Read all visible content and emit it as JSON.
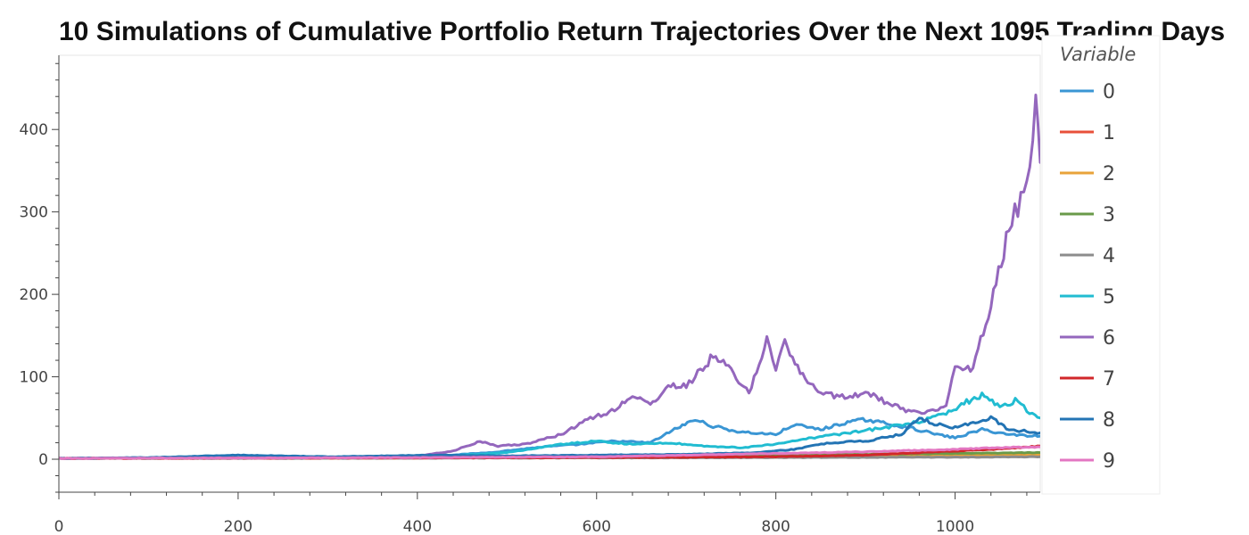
{
  "chart_data": {
    "type": "line",
    "title": "10 Simulations of Cumulative Portfolio Return Trajectories Over the Next 1095 Trading Days",
    "xlabel": "",
    "ylabel": "",
    "xlim": [
      0,
      1095
    ],
    "ylim": [
      -40,
      490
    ],
    "x_ticks": [
      0,
      200,
      400,
      600,
      800,
      1000
    ],
    "y_ticks": [
      0,
      100,
      200,
      300,
      400
    ],
    "legend": {
      "title": "Variable",
      "placement": "right"
    },
    "grid": false,
    "series": [
      {
        "name": "0",
        "color": "#3a96d4",
        "points": [
          [
            0,
            1
          ],
          [
            150,
            1.5
          ],
          [
            300,
            2
          ],
          [
            420,
            4
          ],
          [
            480,
            8
          ],
          [
            540,
            15
          ],
          [
            580,
            18
          ],
          [
            620,
            22
          ],
          [
            660,
            20
          ],
          [
            690,
            38
          ],
          [
            710,
            48
          ],
          [
            730,
            40
          ],
          [
            760,
            33
          ],
          [
            800,
            30
          ],
          [
            820,
            42
          ],
          [
            850,
            36
          ],
          [
            880,
            45
          ],
          [
            900,
            48
          ],
          [
            920,
            44
          ],
          [
            950,
            38
          ],
          [
            980,
            30
          ],
          [
            1000,
            26
          ],
          [
            1030,
            36
          ],
          [
            1060,
            30
          ],
          [
            1095,
            28
          ]
        ]
      },
      {
        "name": "1",
        "color": "#e8503a",
        "points": [
          [
            0,
            1
          ],
          [
            200,
            1.2
          ],
          [
            400,
            1.5
          ],
          [
            600,
            2.5
          ],
          [
            800,
            3.5
          ],
          [
            1000,
            4.5
          ],
          [
            1095,
            5
          ]
        ]
      },
      {
        "name": "2",
        "color": "#e8a33a",
        "points": [
          [
            0,
            1
          ],
          [
            200,
            1.2
          ],
          [
            400,
            1.6
          ],
          [
            600,
            2.2
          ],
          [
            800,
            3.2
          ],
          [
            1000,
            4.2
          ],
          [
            1095,
            5
          ]
        ]
      },
      {
        "name": "3",
        "color": "#6a9a4a",
        "points": [
          [
            0,
            1
          ],
          [
            200,
            1.3
          ],
          [
            400,
            2
          ],
          [
            600,
            3
          ],
          [
            800,
            5
          ],
          [
            900,
            6
          ],
          [
            1000,
            7
          ],
          [
            1095,
            8
          ]
        ]
      },
      {
        "name": "4",
        "color": "#8c8c8c",
        "points": [
          [
            0,
            1
          ],
          [
            200,
            1.1
          ],
          [
            400,
            1.3
          ],
          [
            600,
            1.6
          ],
          [
            800,
            2
          ],
          [
            1000,
            2.5
          ],
          [
            1095,
            3
          ]
        ]
      },
      {
        "name": "5",
        "color": "#21bcd1",
        "points": [
          [
            0,
            1
          ],
          [
            400,
            2
          ],
          [
            500,
            8
          ],
          [
            560,
            18
          ],
          [
            600,
            22
          ],
          [
            640,
            18
          ],
          [
            680,
            20
          ],
          [
            720,
            16
          ],
          [
            760,
            14
          ],
          [
            800,
            18
          ],
          [
            840,
            26
          ],
          [
            880,
            32
          ],
          [
            920,
            38
          ],
          [
            960,
            45
          ],
          [
            990,
            55
          ],
          [
            1010,
            68
          ],
          [
            1030,
            78
          ],
          [
            1050,
            64
          ],
          [
            1070,
            72
          ],
          [
            1080,
            58
          ],
          [
            1095,
            50
          ]
        ]
      },
      {
        "name": "6",
        "color": "#9467bd",
        "points": [
          [
            0,
            1
          ],
          [
            150,
            1.5
          ],
          [
            300,
            2
          ],
          [
            400,
            4
          ],
          [
            440,
            10
          ],
          [
            470,
            22
          ],
          [
            490,
            16
          ],
          [
            520,
            18
          ],
          [
            560,
            30
          ],
          [
            590,
            48
          ],
          [
            620,
            60
          ],
          [
            640,
            78
          ],
          [
            660,
            65
          ],
          [
            680,
            90
          ],
          [
            700,
            88
          ],
          [
            710,
            100
          ],
          [
            730,
            125
          ],
          [
            750,
            108
          ],
          [
            770,
            80
          ],
          [
            790,
            145
          ],
          [
            800,
            110
          ],
          [
            810,
            140
          ],
          [
            830,
            100
          ],
          [
            850,
            80
          ],
          [
            880,
            75
          ],
          [
            900,
            82
          ],
          [
            930,
            65
          ],
          [
            960,
            55
          ],
          [
            990,
            65
          ],
          [
            1000,
            115
          ],
          [
            1020,
            110
          ],
          [
            1040,
            190
          ],
          [
            1060,
            280
          ],
          [
            1070,
            305
          ],
          [
            1080,
            330
          ],
          [
            1090,
            440
          ],
          [
            1095,
            360
          ]
        ]
      },
      {
        "name": "7",
        "color": "#d1272a",
        "points": [
          [
            0,
            1
          ],
          [
            300,
            1.5
          ],
          [
            600,
            2
          ],
          [
            800,
            3
          ],
          [
            900,
            5
          ],
          [
            960,
            8
          ],
          [
            1000,
            10
          ],
          [
            1040,
            12
          ],
          [
            1070,
            14
          ],
          [
            1095,
            16
          ]
        ]
      },
      {
        "name": "8",
        "color": "#2374b4",
        "points": [
          [
            0,
            1
          ],
          [
            100,
            2
          ],
          [
            200,
            5
          ],
          [
            300,
            3
          ],
          [
            420,
            5
          ],
          [
            500,
            4
          ],
          [
            600,
            5
          ],
          [
            700,
            6
          ],
          [
            780,
            8
          ],
          [
            820,
            12
          ],
          [
            860,
            20
          ],
          [
            900,
            22
          ],
          [
            940,
            30
          ],
          [
            960,
            50
          ],
          [
            980,
            42
          ],
          [
            1000,
            38
          ],
          [
            1020,
            44
          ],
          [
            1040,
            50
          ],
          [
            1060,
            36
          ],
          [
            1080,
            34
          ],
          [
            1095,
            32
          ]
        ]
      },
      {
        "name": "9",
        "color": "#e377c2",
        "points": [
          [
            0,
            1
          ],
          [
            200,
            1.5
          ],
          [
            400,
            2
          ],
          [
            600,
            3
          ],
          [
            700,
            5
          ],
          [
            800,
            7
          ],
          [
            900,
            9
          ],
          [
            1000,
            12
          ],
          [
            1050,
            14
          ],
          [
            1095,
            15
          ]
        ]
      }
    ]
  }
}
